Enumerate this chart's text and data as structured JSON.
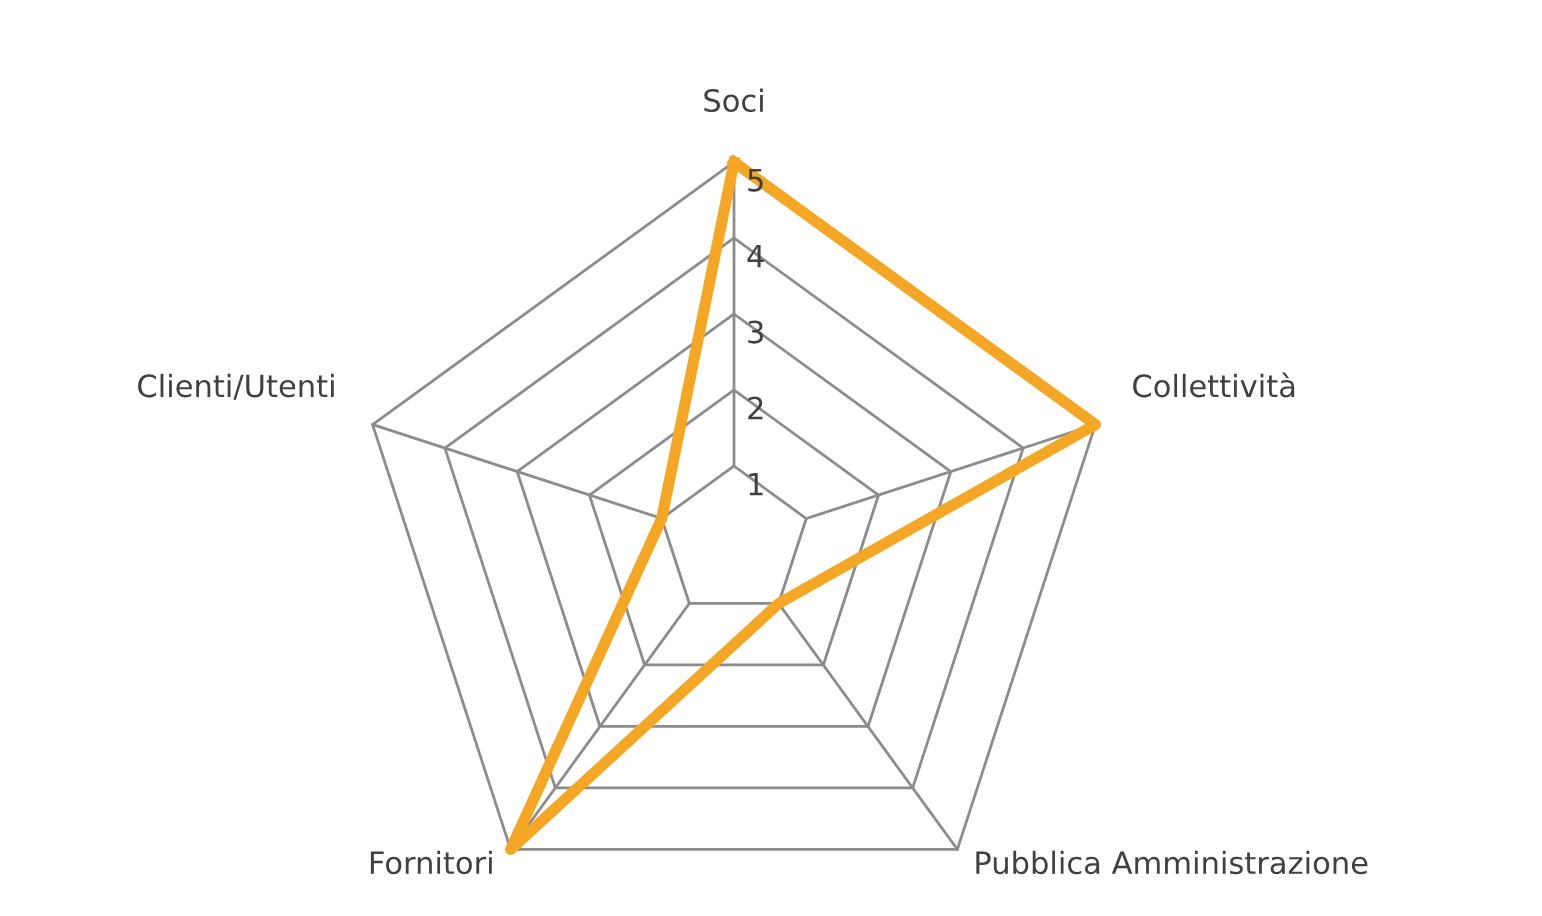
{
  "chart_data": {
    "type": "radar",
    "categories": [
      "Soci",
      "Collettività",
      "Pubblica Amministrazione",
      "Fornitori",
      "Clienti/Utenti"
    ],
    "series": [
      {
        "color": "#f5a623",
        "values": [
          5,
          5,
          1,
          5,
          1
        ]
      }
    ],
    "ylim": [
      0,
      5
    ],
    "yticks": [
      1,
      2,
      3,
      4,
      5
    ],
    "grid": true
  }
}
